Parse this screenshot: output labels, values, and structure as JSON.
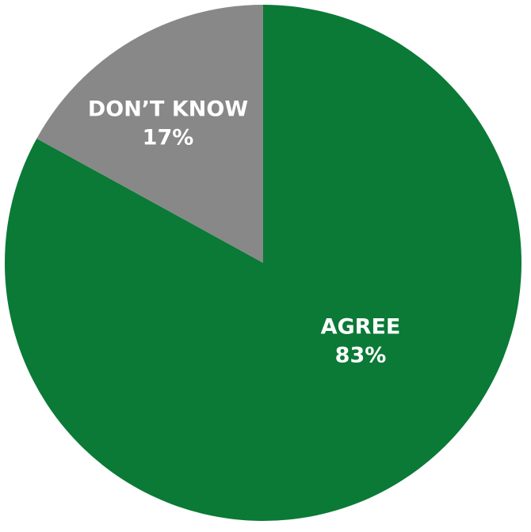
{
  "chart_data": {
    "type": "pie",
    "title": "",
    "start": "12 o'clock",
    "direction": "clockwise",
    "legend": "none",
    "slices": [
      {
        "label": "AGREE",
        "value": 83,
        "value_label": "83%",
        "color": "#0a7a36"
      },
      {
        "label": "DON’T KNOW",
        "value": 17,
        "value_label": "17%",
        "color": "#888888"
      }
    ]
  }
}
